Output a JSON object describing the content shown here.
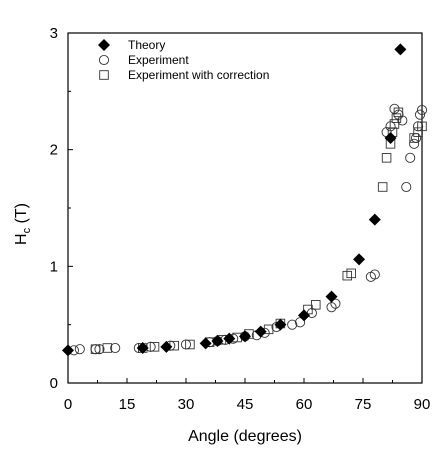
{
  "chart_data": {
    "type": "scatter",
    "xlabel": "Angle (degrees)",
    "ylabel_main": "H",
    "ylabel_sub": "c",
    "ylabel_unit": " (T)",
    "xlim": [
      0,
      90
    ],
    "ylim": [
      0,
      3
    ],
    "xticks": [
      "0",
      "15",
      "30",
      "45",
      "60",
      "75",
      "90"
    ],
    "yticks": [
      "0",
      "1",
      "2",
      "3"
    ],
    "grid": false,
    "legend_position": "top-left",
    "series": [
      {
        "name": "Theory",
        "marker": "diamond",
        "points": [
          [
            0,
            0.28
          ],
          [
            19,
            0.3
          ],
          [
            25,
            0.31
          ],
          [
            35,
            0.34
          ],
          [
            38,
            0.36
          ],
          [
            41,
            0.38
          ],
          [
            45,
            0.4
          ],
          [
            49,
            0.44
          ],
          [
            54,
            0.5
          ],
          [
            60,
            0.58
          ],
          [
            67,
            0.74
          ],
          [
            74,
            1.06
          ],
          [
            78,
            1.4
          ],
          [
            82,
            2.1
          ],
          [
            84.5,
            2.86
          ]
        ]
      },
      {
        "name": "Experiment",
        "marker": "circle",
        "points": [
          [
            1.5,
            0.28
          ],
          [
            3,
            0.29
          ],
          [
            7,
            0.29
          ],
          [
            8,
            0.29
          ],
          [
            12,
            0.3
          ],
          [
            18,
            0.3
          ],
          [
            21,
            0.31
          ],
          [
            26,
            0.32
          ],
          [
            30,
            0.33
          ],
          [
            36,
            0.35
          ],
          [
            38,
            0.36
          ],
          [
            40,
            0.37
          ],
          [
            42,
            0.38
          ],
          [
            45,
            0.4
          ],
          [
            48,
            0.41
          ],
          [
            50,
            0.43
          ],
          [
            53,
            0.48
          ],
          [
            57,
            0.5
          ],
          [
            59,
            0.52
          ],
          [
            62,
            0.6
          ],
          [
            67,
            0.65
          ],
          [
            68,
            0.68
          ],
          [
            77,
            0.91
          ],
          [
            78,
            0.93
          ],
          [
            81,
            2.15
          ],
          [
            82,
            2.2
          ],
          [
            83,
            2.35
          ],
          [
            84,
            2.3
          ],
          [
            85,
            2.25
          ],
          [
            86,
            1.68
          ],
          [
            87,
            1.93
          ],
          [
            88,
            2.05
          ],
          [
            88.5,
            2.1
          ],
          [
            89,
            2.2
          ],
          [
            89.5,
            2.3
          ],
          [
            90,
            2.34
          ]
        ]
      },
      {
        "name": "Experiment with correction",
        "marker": "square",
        "points": [
          [
            7,
            0.29
          ],
          [
            10,
            0.3
          ],
          [
            19,
            0.3
          ],
          [
            22,
            0.31
          ],
          [
            27,
            0.32
          ],
          [
            31,
            0.33
          ],
          [
            36,
            0.35
          ],
          [
            39,
            0.37
          ],
          [
            43,
            0.39
          ],
          [
            46,
            0.42
          ],
          [
            51,
            0.46
          ],
          [
            54,
            0.51
          ],
          [
            61,
            0.63
          ],
          [
            63,
            0.67
          ],
          [
            71,
            0.92
          ],
          [
            72,
            0.94
          ],
          [
            80,
            1.68
          ],
          [
            81,
            1.93
          ],
          [
            82,
            2.05
          ],
          [
            82.5,
            2.15
          ],
          [
            83,
            2.22
          ],
          [
            83.5,
            2.27
          ],
          [
            84,
            2.32
          ],
          [
            88,
            2.1
          ],
          [
            89,
            2.15
          ],
          [
            90,
            2.2
          ]
        ]
      }
    ]
  }
}
